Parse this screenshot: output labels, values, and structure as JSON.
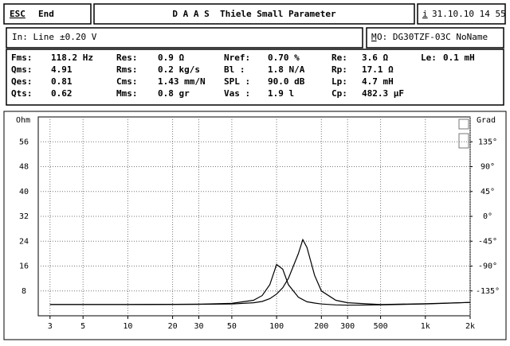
{
  "header": {
    "esc_key": "ESC",
    "esc_label": "End",
    "title": "D A A S  Thiele Small Parameter",
    "info_key": "i",
    "datetime": "31.10.10 14 55"
  },
  "input": {
    "label": "In: Line",
    "level": "±0.20 V"
  },
  "model": {
    "key": "M",
    "label": "O: DG30TZF-03C NoName"
  },
  "parameters": [
    [
      {
        "label": "Fms:",
        "value": "118.2 Hz"
      },
      {
        "label": "Res:",
        "value": "0.9 Ω"
      },
      {
        "label": "Nref:",
        "value": "0.70 %"
      },
      {
        "label": "Re:",
        "value": "3.6 Ω"
      },
      {
        "label": "Le:",
        "value": "0.1 mH"
      }
    ],
    [
      {
        "label": "Qms:",
        "value": "4.91"
      },
      {
        "label": "Rms:",
        "value": "0.2 kg/s"
      },
      {
        "label": "Bl  :",
        "value": "1.8 N/A"
      },
      {
        "label": "Rp:",
        "value": "17.1 Ω"
      }
    ],
    [
      {
        "label": "Qes:",
        "value": "0.81"
      },
      {
        "label": "Cms:",
        "value": "1.43 mm/N"
      },
      {
        "label": "SPL :",
        "value": "90.0 dB"
      },
      {
        "label": "Lp:",
        "value": "4.7 mH"
      }
    ],
    [
      {
        "label": "Qts:",
        "value": "0.62"
      },
      {
        "label": "Mms:",
        "value": "0.8 gr"
      },
      {
        "label": "Vas :",
        "value": "1.9 l"
      },
      {
        "label": "Cp:",
        "value": "482.3 µF"
      }
    ]
  ],
  "chart_data": {
    "type": "line",
    "y_label": "Ohm",
    "y2_label": "Grad",
    "xlog": true,
    "grid": true,
    "xlim": [
      2.5,
      2000
    ],
    "ylim": [
      0,
      64
    ],
    "y2lim": [
      -180,
      180
    ],
    "xticks": [
      3,
      5,
      10,
      20,
      30,
      50,
      100,
      200,
      300,
      500,
      {
        "value": 1000,
        "label": "1k"
      },
      {
        "value": 2000,
        "label": "2k"
      }
    ],
    "yticks": [
      8,
      16,
      24,
      32,
      40,
      48,
      56
    ],
    "y2ticks": [
      {
        "value": 135,
        "label": "135°"
      },
      {
        "value": 90,
        "label": "90°"
      },
      {
        "value": 45,
        "label": "45°"
      },
      {
        "value": 0,
        "label": "0°"
      },
      {
        "value": -45,
        "label": "-45°"
      },
      {
        "value": -90,
        "label": "-90°"
      },
      {
        "value": -135,
        "label": "-135°"
      }
    ],
    "x": [
      3,
      10,
      30,
      50,
      70,
      80,
      90,
      100,
      110,
      120,
      140,
      150,
      160,
      180,
      200,
      250,
      300,
      500,
      1000,
      2000
    ],
    "series": [
      {
        "color": "#000000",
        "values": [
          3.6,
          3.6,
          3.7,
          4.0,
          5.0,
          6.5,
          10,
          16.5,
          15,
          10,
          6,
          5.2,
          4.5,
          4.1,
          3.8,
          3.5,
          3.4,
          3.5,
          3.8,
          4.3
        ]
      },
      {
        "color": "#000000",
        "values": [
          3.6,
          3.6,
          3.7,
          3.8,
          4.2,
          4.6,
          5.5,
          7,
          9,
          12,
          20,
          24.5,
          22,
          13,
          8,
          5,
          4.2,
          3.6,
          3.9,
          4.3
        ]
      }
    ]
  }
}
